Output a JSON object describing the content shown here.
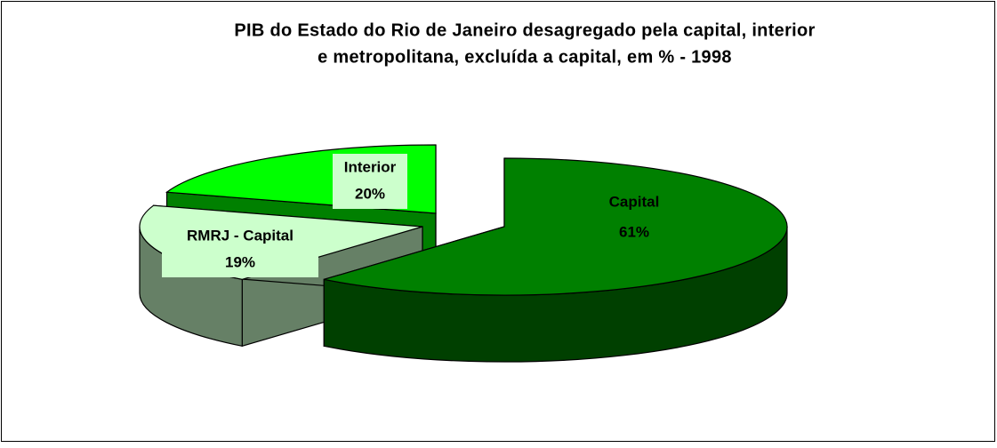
{
  "chart_data": {
    "type": "pie3d",
    "title": [
      "PIB do Estado do Rio de Janeiro desagregado pela capital, interior",
      "e metropolitana, excluída a capital, em % - 1998"
    ],
    "categories": [
      "Capital",
      "RMRJ - Capital",
      "Interior"
    ],
    "values": [
      61,
      19,
      20
    ],
    "value_labels": [
      "61%",
      "19%",
      "20%"
    ],
    "colors": [
      "#008000",
      "#ccffcc",
      "#00ff00"
    ]
  }
}
